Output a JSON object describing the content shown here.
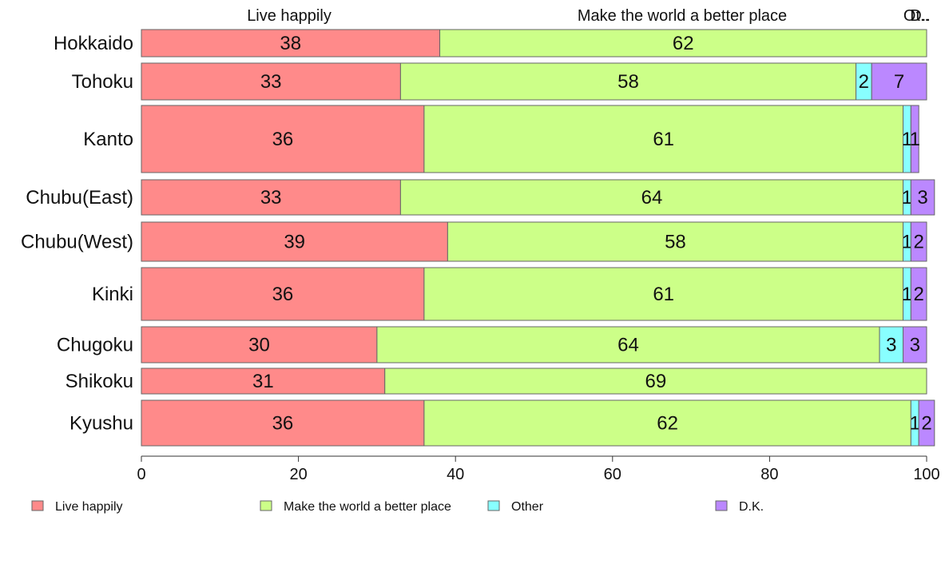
{
  "chart_data": {
    "type": "bar",
    "orientation": "horizontal",
    "stacked": true,
    "percent": true,
    "categories": [
      "Hokkaido",
      "Tohoku",
      "Kanto",
      "Chubu(East)",
      "Chubu(West)",
      "Kinki",
      "Chugoku",
      "Shikoku",
      "Kyushu"
    ],
    "series": [
      {
        "name": "Live happily",
        "color": "#ff8a8a",
        "values": [
          38,
          33,
          36,
          33,
          39,
          36,
          30,
          31,
          36
        ]
      },
      {
        "name": "Make the world a better place",
        "color": "#ccff88",
        "values": [
          62,
          58,
          61,
          64,
          58,
          61,
          64,
          69,
          62
        ]
      },
      {
        "name": "Other",
        "color": "#88ffff",
        "values": [
          0,
          2,
          1,
          1,
          1,
          1,
          3,
          0,
          1
        ]
      },
      {
        "name": "D.K.",
        "color": "#bb88ff",
        "values": [
          0,
          7,
          1,
          3,
          2,
          2,
          3,
          0,
          2
        ]
      }
    ],
    "top_labels": [
      "Live happily",
      "Make the world a better place",
      "Ot..",
      "D.."
    ],
    "xlim": [
      0,
      100
    ],
    "xticks": [
      0,
      20,
      40,
      60,
      80,
      100
    ],
    "grid": false,
    "legend_position": "bottom"
  }
}
